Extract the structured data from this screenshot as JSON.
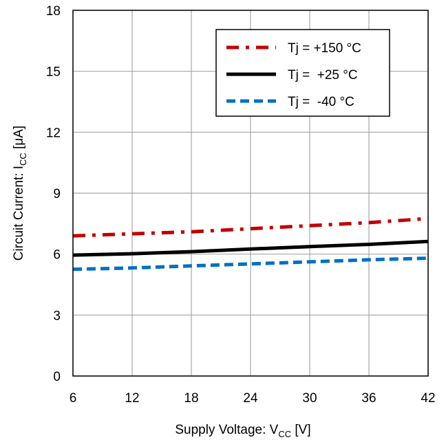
{
  "chart_data": {
    "type": "line",
    "xlabel": {
      "main": "Supply Voltage: V",
      "sub": "CC",
      "unit": " [V]"
    },
    "ylabel": {
      "main": "Circuit Current: I",
      "sub": "CC",
      "unit": " [μA]"
    },
    "xlim": [
      6,
      42
    ],
    "ylim": [
      0,
      18
    ],
    "xticks": [
      6,
      12,
      18,
      24,
      30,
      36,
      42
    ],
    "yticks": [
      0,
      3,
      6,
      9,
      12,
      15,
      18
    ],
    "grid": true,
    "legend_position": "top-right",
    "series": [
      {
        "name": "Tj = +150 °C",
        "color": "#c00000",
        "dash": "dash-dot",
        "x": [
          6,
          12,
          18,
          24,
          30,
          36,
          42
        ],
        "y": [
          6.9,
          7.0,
          7.1,
          7.25,
          7.4,
          7.55,
          7.75
        ]
      },
      {
        "name": "Tj =  +25 °C",
        "color": "#000000",
        "dash": "solid",
        "x": [
          6,
          12,
          18,
          24,
          30,
          36,
          42
        ],
        "y": [
          5.95,
          6.02,
          6.12,
          6.25,
          6.37,
          6.48,
          6.62
        ]
      },
      {
        "name": "Tj =  -40 °C",
        "color": "#0070c0",
        "dash": "dashed",
        "x": [
          6,
          12,
          18,
          24,
          30,
          36,
          42
        ],
        "y": [
          5.25,
          5.32,
          5.42,
          5.52,
          5.62,
          5.72,
          5.8
        ]
      }
    ]
  }
}
